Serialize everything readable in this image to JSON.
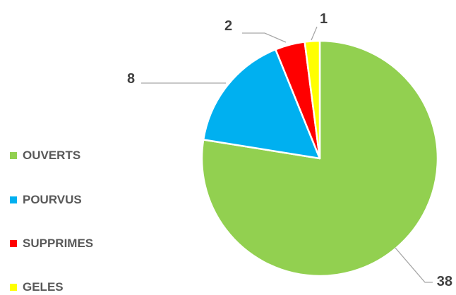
{
  "chart_data": {
    "type": "pie",
    "title": "",
    "categories": [
      "OUVERTS",
      "POURVUS",
      "SUPPRIMES",
      "GELES"
    ],
    "values": [
      38,
      8,
      2,
      1
    ],
    "colors": [
      "#92D050",
      "#00B0F0",
      "#FF0000",
      "#FFFF00"
    ],
    "data_labels": [
      "38",
      "8",
      "2",
      "1"
    ],
    "legend_position": "left",
    "start_angle": "top, clockwise"
  }
}
